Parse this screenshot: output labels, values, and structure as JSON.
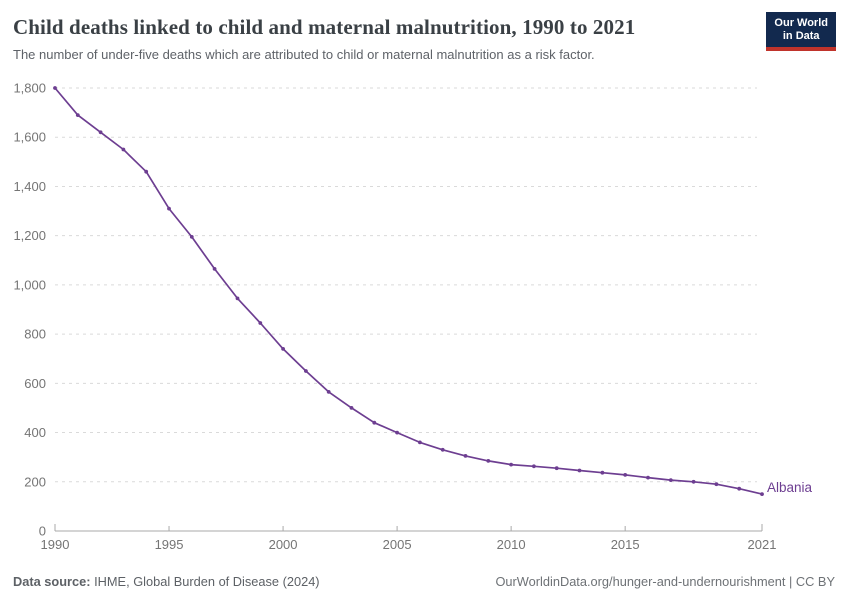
{
  "header": {
    "title": "Child deaths linked to child and maternal malnutrition, 1990 to 2021",
    "subtitle": "The number of under-five deaths which are attributed to child or maternal malnutrition as a risk factor.",
    "logo_line1": "Our World",
    "logo_line2": "in Data"
  },
  "chart_data": {
    "type": "line",
    "title": "Child deaths linked to child and maternal malnutrition, 1990 to 2021",
    "x": [
      1990,
      1991,
      1992,
      1993,
      1994,
      1995,
      1996,
      1997,
      1998,
      1999,
      2000,
      2001,
      2002,
      2003,
      2004,
      2005,
      2006,
      2007,
      2008,
      2009,
      2010,
      2011,
      2012,
      2013,
      2014,
      2015,
      2016,
      2017,
      2018,
      2019,
      2020,
      2021
    ],
    "series": [
      {
        "name": "Albania",
        "color": "#6d3e91",
        "values": [
          1800,
          1690,
          1620,
          1550,
          1460,
          1310,
          1195,
          1065,
          945,
          845,
          740,
          650,
          565,
          500,
          440,
          400,
          360,
          330,
          305,
          285,
          270,
          263,
          255,
          246,
          237,
          228,
          217,
          207,
          200,
          190,
          172,
          150
        ]
      }
    ],
    "xlabel": "",
    "ylabel": "",
    "xlim": [
      1990,
      2021
    ],
    "ylim": [
      0,
      1800
    ],
    "x_ticks": [
      1990,
      1995,
      2000,
      2005,
      2010,
      2015,
      2021
    ],
    "y_ticks": [
      0,
      200,
      400,
      600,
      800,
      1000,
      1200,
      1400,
      1600,
      1800
    ],
    "grid": "horizontal-dashed",
    "legend_position": "end-of-line",
    "marker": "dot"
  },
  "footer": {
    "data_source_label": "Data source:",
    "data_source_value": "IHME, Global Burden of Disease (2024)",
    "attribution": "OurWorldinData.org/hunger-and-undernourishment | CC BY"
  },
  "colors": {
    "line": "#6d3e91",
    "grid": "#dadada",
    "axis": "#a9a9a9",
    "tick_text": "#757575",
    "logo_bg": "#12294e",
    "logo_stripe": "#c0332b",
    "title_text": "#3a4045"
  }
}
